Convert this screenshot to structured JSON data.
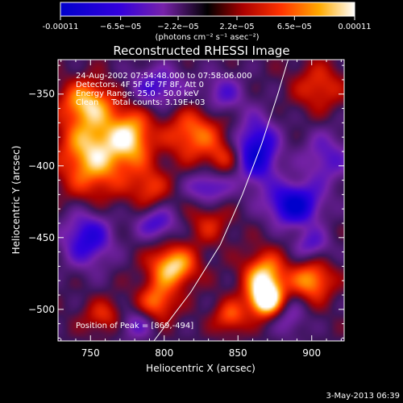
{
  "chart_data": {
    "type": "heatmap",
    "title": "Reconstructed RHESSI Image",
    "xlabel": "Heliocentric X (arcsec)",
    "ylabel": "Heliocentric Y (arcsec)",
    "xlim": [
      728,
      922
    ],
    "ylim": [
      -522,
      -326
    ],
    "x_ticks": [
      750,
      800,
      850,
      900
    ],
    "x_tick_labels": [
      "750",
      "800",
      "850",
      "900"
    ],
    "y_ticks": [
      -350,
      -400,
      -450,
      -500
    ],
    "y_tick_labels": [
      "−350",
      "−400",
      "−450",
      "−500"
    ],
    "colorbar": {
      "range": [
        -0.00011,
        0.00011
      ],
      "tick_values": [
        -0.00011,
        -6.5e-05,
        -2.2e-05,
        2.2e-05,
        6.5e-05,
        0.00011
      ],
      "tick_labels": [
        "-0.00011",
        "−6.5e−05",
        "−2.2e−05",
        "2.2e−05",
        "6.5e−05",
        "0.00011"
      ],
      "units_label": "(photons cm⁻² s⁻¹ asec⁻²)"
    },
    "annotations": {
      "time_range": "24-Aug-2002 07:54:48.000 to 07:58:06.000",
      "detectors": "Detectors: 4F 5F 6F 7F 8F, Att 0",
      "energy_range": "Energy Range: 25.0 - 50.0 keV",
      "method_counts": "Clean     Total counts: 3.19E+03",
      "peak_position": "Position of Peak = [869,-494]"
    },
    "limb_curve": [
      [
        793,
        -522
      ],
      [
        818,
        -488
      ],
      [
        838,
        -455
      ],
      [
        853,
        -420
      ],
      [
        866,
        -385
      ],
      [
        877,
        -350
      ],
      [
        884,
        -326
      ]
    ],
    "peak": [
      869,
      -494
    ],
    "sources": [
      {
        "x": 752,
        "y": -390,
        "sx": 16,
        "sy": 22,
        "amp": 0.0001
      },
      {
        "x": 778,
        "y": -380,
        "sx": 10,
        "sy": 14,
        "amp": 8e-05
      },
      {
        "x": 747,
        "y": -355,
        "sx": 12,
        "sy": 10,
        "amp": 7e-05
      },
      {
        "x": 790,
        "y": -415,
        "sx": 9,
        "sy": 10,
        "amp": 5e-05
      },
      {
        "x": 820,
        "y": -378,
        "sx": 14,
        "sy": 13,
        "amp": 7e-05
      },
      {
        "x": 840,
        "y": -395,
        "sx": 8,
        "sy": 8,
        "amp": 4e-05
      },
      {
        "x": 806,
        "y": -470,
        "sx": 11,
        "sy": 10,
        "amp": 0.0001
      },
      {
        "x": 795,
        "y": -495,
        "sx": 9,
        "sy": 10,
        "amp": 7e-05
      },
      {
        "x": 868,
        "y": -478,
        "sx": 10,
        "sy": 12,
        "amp": 0.0001
      },
      {
        "x": 869,
        "y": -494,
        "sx": 8,
        "sy": 8,
        "amp": 0.00011
      },
      {
        "x": 845,
        "y": -505,
        "sx": 8,
        "sy": 8,
        "amp": 6e-05
      },
      {
        "x": 900,
        "y": -480,
        "sx": 10,
        "sy": 10,
        "amp": 8e-05
      },
      {
        "x": 905,
        "y": -345,
        "sx": 12,
        "sy": 12,
        "amp": 5e-05
      },
      {
        "x": 760,
        "y": -505,
        "sx": 10,
        "sy": 8,
        "amp": 5e-05
      },
      {
        "x": 830,
        "y": -440,
        "sx": 10,
        "sy": 10,
        "amp": 4e-05
      },
      {
        "x": 863,
        "y": -390,
        "sx": 10,
        "sy": 16,
        "amp": -0.0001
      },
      {
        "x": 888,
        "y": -427,
        "sx": 12,
        "sy": 10,
        "amp": -0.00011
      },
      {
        "x": 748,
        "y": -450,
        "sx": 12,
        "sy": 14,
        "amp": -8e-05
      },
      {
        "x": 795,
        "y": -345,
        "sx": 14,
        "sy": 10,
        "amp": -6e-05
      },
      {
        "x": 795,
        "y": -440,
        "sx": 10,
        "sy": 8,
        "amp": -6e-05
      },
      {
        "x": 830,
        "y": -415,
        "sx": 10,
        "sy": 8,
        "amp": -6e-05
      },
      {
        "x": 910,
        "y": -395,
        "sx": 12,
        "sy": 14,
        "amp": -5e-05
      },
      {
        "x": 840,
        "y": -350,
        "sx": 10,
        "sy": 10,
        "amp": -5e-05
      },
      {
        "x": 900,
        "y": -455,
        "sx": 9,
        "sy": 8,
        "amp": -5e-05
      },
      {
        "x": 780,
        "y": -510,
        "sx": 10,
        "sy": 8,
        "amp": -5e-05
      },
      {
        "x": 885,
        "y": -505,
        "sx": 8,
        "sy": 10,
        "amp": -4e-05
      }
    ]
  },
  "footer": {
    "date_stamp": "3-May-2013 06:39"
  }
}
